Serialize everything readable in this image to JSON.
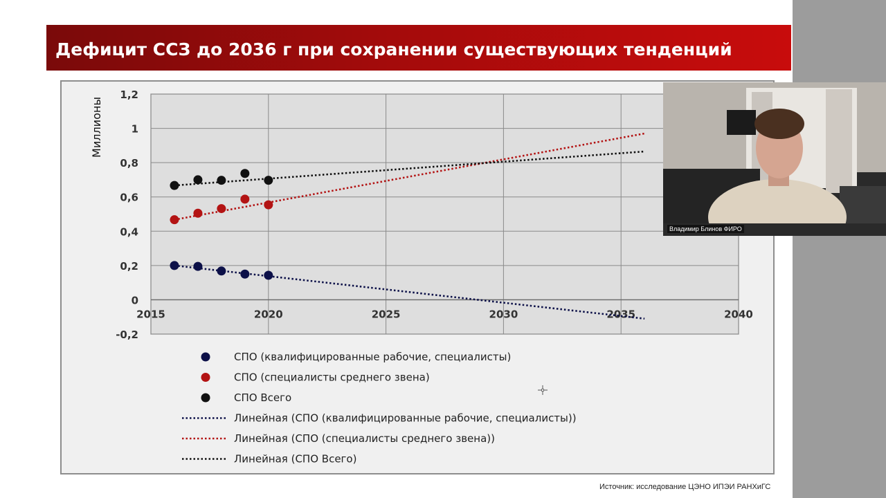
{
  "slide": {
    "title": "Дефицит  ССЗ до 2036 г при сохранении существующих тенденций",
    "source_note": "Источник: исследование ЦЭНО ИПЭИ РАНХиГС"
  },
  "video": {
    "participant_name": "Владимир Блинов ФИРО"
  },
  "colors": {
    "title_bar": "#b00b0b",
    "navy_series": "#0c1048",
    "red_series": "#b31313",
    "black_series": "#111111"
  },
  "chart_data": {
    "type": "scatter",
    "ylabel": "Миллионы",
    "xlabel": "",
    "xlim": [
      2015,
      2040
    ],
    "ylim": [
      -0.2,
      1.2
    ],
    "xticks": [
      "2015",
      "2020",
      "2025",
      "2030",
      "2035",
      "2040"
    ],
    "yticks": [
      "1,2",
      "1",
      "0,8",
      "0,6",
      "0,4",
      "0,2",
      "0",
      "-0,2"
    ],
    "grid": true,
    "legend_position": "bottom",
    "series": [
      {
        "name": "СПО (квалифицированные рабочие, специалисты)",
        "color": "#0c1048",
        "points": [
          [
            2016,
            0.2
          ],
          [
            2017,
            0.195
          ],
          [
            2018,
            0.168
          ],
          [
            2019,
            0.15
          ],
          [
            2020,
            0.143
          ]
        ]
      },
      {
        "name": "СПО (специалисты среднего звена)",
        "color": "#b31313",
        "points": [
          [
            2016,
            0.467
          ],
          [
            2017,
            0.505
          ],
          [
            2018,
            0.532
          ],
          [
            2019,
            0.587
          ],
          [
            2020,
            0.554
          ]
        ]
      },
      {
        "name": "СПО Всего",
        "color": "#111111",
        "points": [
          [
            2016,
            0.667
          ],
          [
            2017,
            0.7
          ],
          [
            2018,
            0.697
          ],
          [
            2019,
            0.737
          ],
          [
            2020,
            0.697
          ]
        ]
      }
    ],
    "trendlines": [
      {
        "name": "Линейная (СПО (квалифицированные рабочие, специалисты))",
        "color": "#0c1048",
        "x": [
          2016,
          2036
        ],
        "y": [
          0.2,
          -0.11
        ]
      },
      {
        "name": "Линейная (СПО (специалисты среднего звена))",
        "color": "#b31313",
        "x": [
          2016,
          2036
        ],
        "y": [
          0.467,
          0.97
        ]
      },
      {
        "name": "Линейная (СПО Всего)",
        "color": "#111111",
        "x": [
          2016,
          2036
        ],
        "y": [
          0.667,
          0.865
        ]
      }
    ]
  }
}
